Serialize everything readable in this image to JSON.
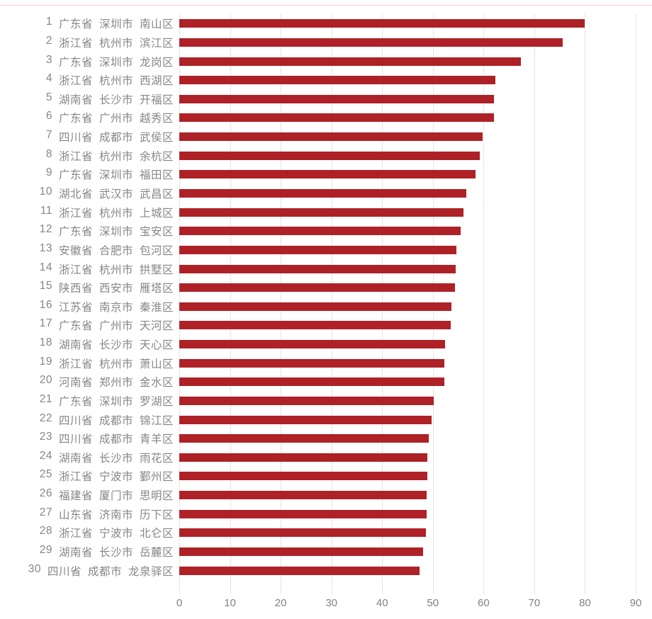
{
  "chart_data": {
    "type": "bar",
    "orientation": "horizontal",
    "title": "",
    "xlabel": "",
    "ylabel": "",
    "xlim": [
      0,
      90
    ],
    "x_ticks": [
      0,
      10,
      20,
      30,
      40,
      50,
      60,
      70,
      80,
      90
    ],
    "grid": "vertical-gridlines",
    "legend": "none",
    "bar_color": "#ae2126",
    "gridline_color": "#e4e4e4",
    "label_color": "#868686",
    "top_border_color": "#f3d3d3",
    "rows": [
      {
        "rank": "1",
        "province": "广东省",
        "city": "深圳市",
        "district": "南山区",
        "value": 80.0
      },
      {
        "rank": "2",
        "province": "浙江省",
        "city": "杭州市",
        "district": "滨江区",
        "value": 75.6
      },
      {
        "rank": "3",
        "province": "广东省",
        "city": "深圳市",
        "district": "龙岗区",
        "value": 67.4
      },
      {
        "rank": "4",
        "province": "浙江省",
        "city": "杭州市",
        "district": "西湖区",
        "value": 62.3
      },
      {
        "rank": "5",
        "province": "湖南省",
        "city": "长沙市",
        "district": "开福区",
        "value": 62.1
      },
      {
        "rank": "6",
        "province": "广东省",
        "city": "广州市",
        "district": "越秀区",
        "value": 62.0
      },
      {
        "rank": "7",
        "province": "四川省",
        "city": "成都市",
        "district": "武侯区",
        "value": 59.8
      },
      {
        "rank": "8",
        "province": "浙江省",
        "city": "杭州市",
        "district": "余杭区",
        "value": 59.2
      },
      {
        "rank": "9",
        "province": "广东省",
        "city": "深圳市",
        "district": "福田区",
        "value": 58.4
      },
      {
        "rank": "10",
        "province": "湖北省",
        "city": "武汉市",
        "district": "武昌区",
        "value": 56.6
      },
      {
        "rank": "11",
        "province": "浙江省",
        "city": "杭州市",
        "district": "上城区",
        "value": 56.1
      },
      {
        "rank": "12",
        "province": "广东省",
        "city": "深圳市",
        "district": "宝安区",
        "value": 55.5
      },
      {
        "rank": "13",
        "province": "安徽省",
        "city": "合肥市",
        "district": "包河区",
        "value": 54.6
      },
      {
        "rank": "14",
        "province": "浙江省",
        "city": "杭州市",
        "district": "拱墅区",
        "value": 54.5
      },
      {
        "rank": "15",
        "province": "陕西省",
        "city": "西安市",
        "district": "雁塔区",
        "value": 54.4
      },
      {
        "rank": "16",
        "province": "江苏省",
        "city": "南京市",
        "district": "秦淮区",
        "value": 53.7
      },
      {
        "rank": "17",
        "province": "广东省",
        "city": "广州市",
        "district": "天河区",
        "value": 53.5
      },
      {
        "rank": "18",
        "province": "湖南省",
        "city": "长沙市",
        "district": "天心区",
        "value": 52.4
      },
      {
        "rank": "19",
        "province": "浙江省",
        "city": "杭州市",
        "district": "萧山区",
        "value": 52.2
      },
      {
        "rank": "20",
        "province": "河南省",
        "city": "郑州市",
        "district": "金水区",
        "value": 52.2
      },
      {
        "rank": "21",
        "province": "广东省",
        "city": "深圳市",
        "district": "罗湖区",
        "value": 50.2
      },
      {
        "rank": "22",
        "province": "四川省",
        "city": "成都市",
        "district": "锦江区",
        "value": 49.8
      },
      {
        "rank": "23",
        "province": "四川省",
        "city": "成都市",
        "district": "青羊区",
        "value": 49.2
      },
      {
        "rank": "24",
        "province": "湖南省",
        "city": "长沙市",
        "district": "雨花区",
        "value": 48.9
      },
      {
        "rank": "25",
        "province": "浙江省",
        "city": "宁波市",
        "district": "鄞州区",
        "value": 48.9
      },
      {
        "rank": "26",
        "province": "福建省",
        "city": "厦门市",
        "district": "思明区",
        "value": 48.8
      },
      {
        "rank": "27",
        "province": "山东省",
        "city": "济南市",
        "district": "历下区",
        "value": 48.8
      },
      {
        "rank": "28",
        "province": "浙江省",
        "city": "宁波市",
        "district": "北仑区",
        "value": 48.6
      },
      {
        "rank": "29",
        "province": "湖南省",
        "city": "长沙市",
        "district": "岳麓区",
        "value": 48.1
      },
      {
        "rank": "30",
        "province": "四川省",
        "city": "成都市",
        "district": "龙泉驿区",
        "value": 47.4
      }
    ]
  }
}
